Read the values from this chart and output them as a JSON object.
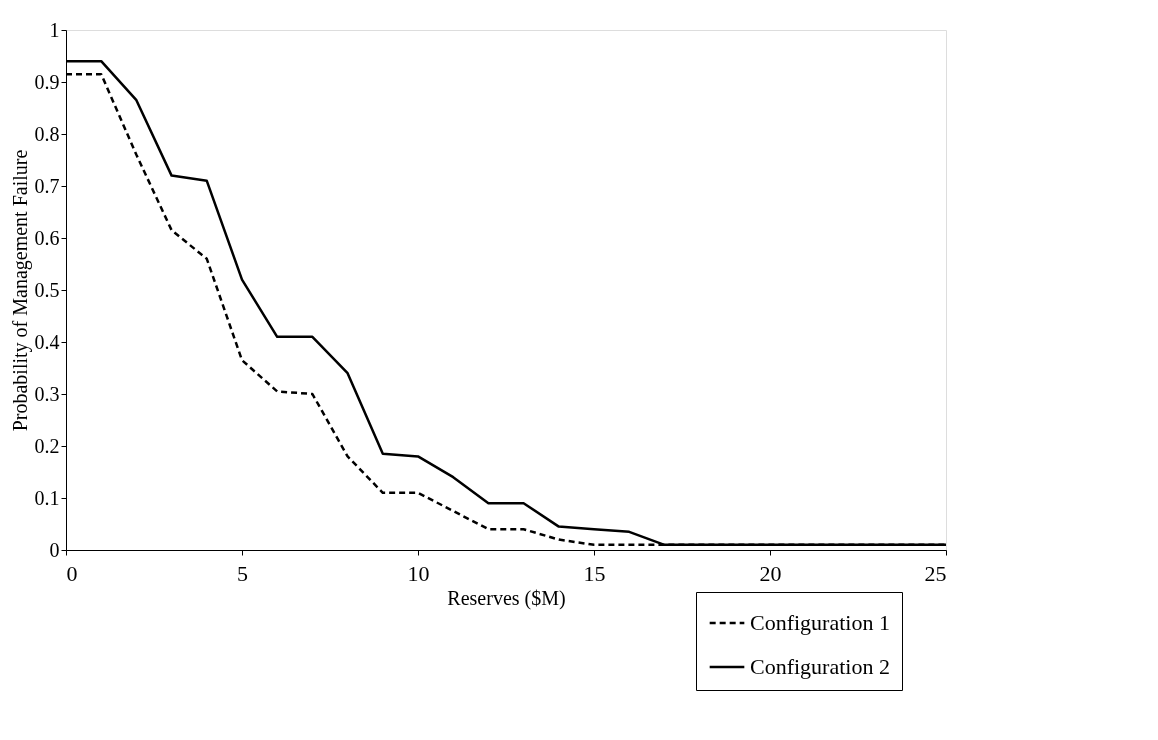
{
  "chart_data": {
    "type": "line",
    "xlabel": "Reserves ($M)",
    "ylabel": "Probability of Management Failure",
    "xlim": [
      0,
      25
    ],
    "xticks": [
      0,
      5,
      10,
      15,
      20,
      25
    ],
    "ylim": [
      0,
      1
    ],
    "yticks": [
      0,
      0.1,
      0.2,
      0.3,
      0.4,
      0.5,
      0.6,
      0.7,
      0.8,
      0.9,
      1
    ],
    "grid": false,
    "legend": "bottom right",
    "marker": "none",
    "series": [
      {
        "name": "Configuration 1",
        "color": "#000000",
        "line_style": "dashed",
        "x": [
          0,
          1,
          2,
          3,
          4,
          5,
          6,
          7,
          8,
          9,
          10,
          11,
          12,
          13,
          14,
          15,
          16,
          17,
          20,
          25
        ],
        "values": [
          0.915,
          0.915,
          0.76,
          0.615,
          0.56,
          0.365,
          0.305,
          0.3,
          0.18,
          0.11,
          0.11,
          0.075,
          0.04,
          0.04,
          0.02,
          0.01,
          0.01,
          0.01,
          0.01,
          0.01
        ]
      },
      {
        "name": "Configuration 2",
        "color": "#000000",
        "line_style": "solid",
        "x": [
          0,
          1,
          2,
          3,
          4,
          5,
          6,
          7,
          8,
          9,
          10,
          11,
          12,
          13,
          14,
          15,
          16,
          17,
          20,
          25
        ],
        "values": [
          0.94,
          0.94,
          0.865,
          0.72,
          0.71,
          0.52,
          0.41,
          0.41,
          0.34,
          0.185,
          0.18,
          0.14,
          0.09,
          0.09,
          0.045,
          0.04,
          0.035,
          0.01,
          0.01,
          0.01
        ]
      }
    ]
  }
}
